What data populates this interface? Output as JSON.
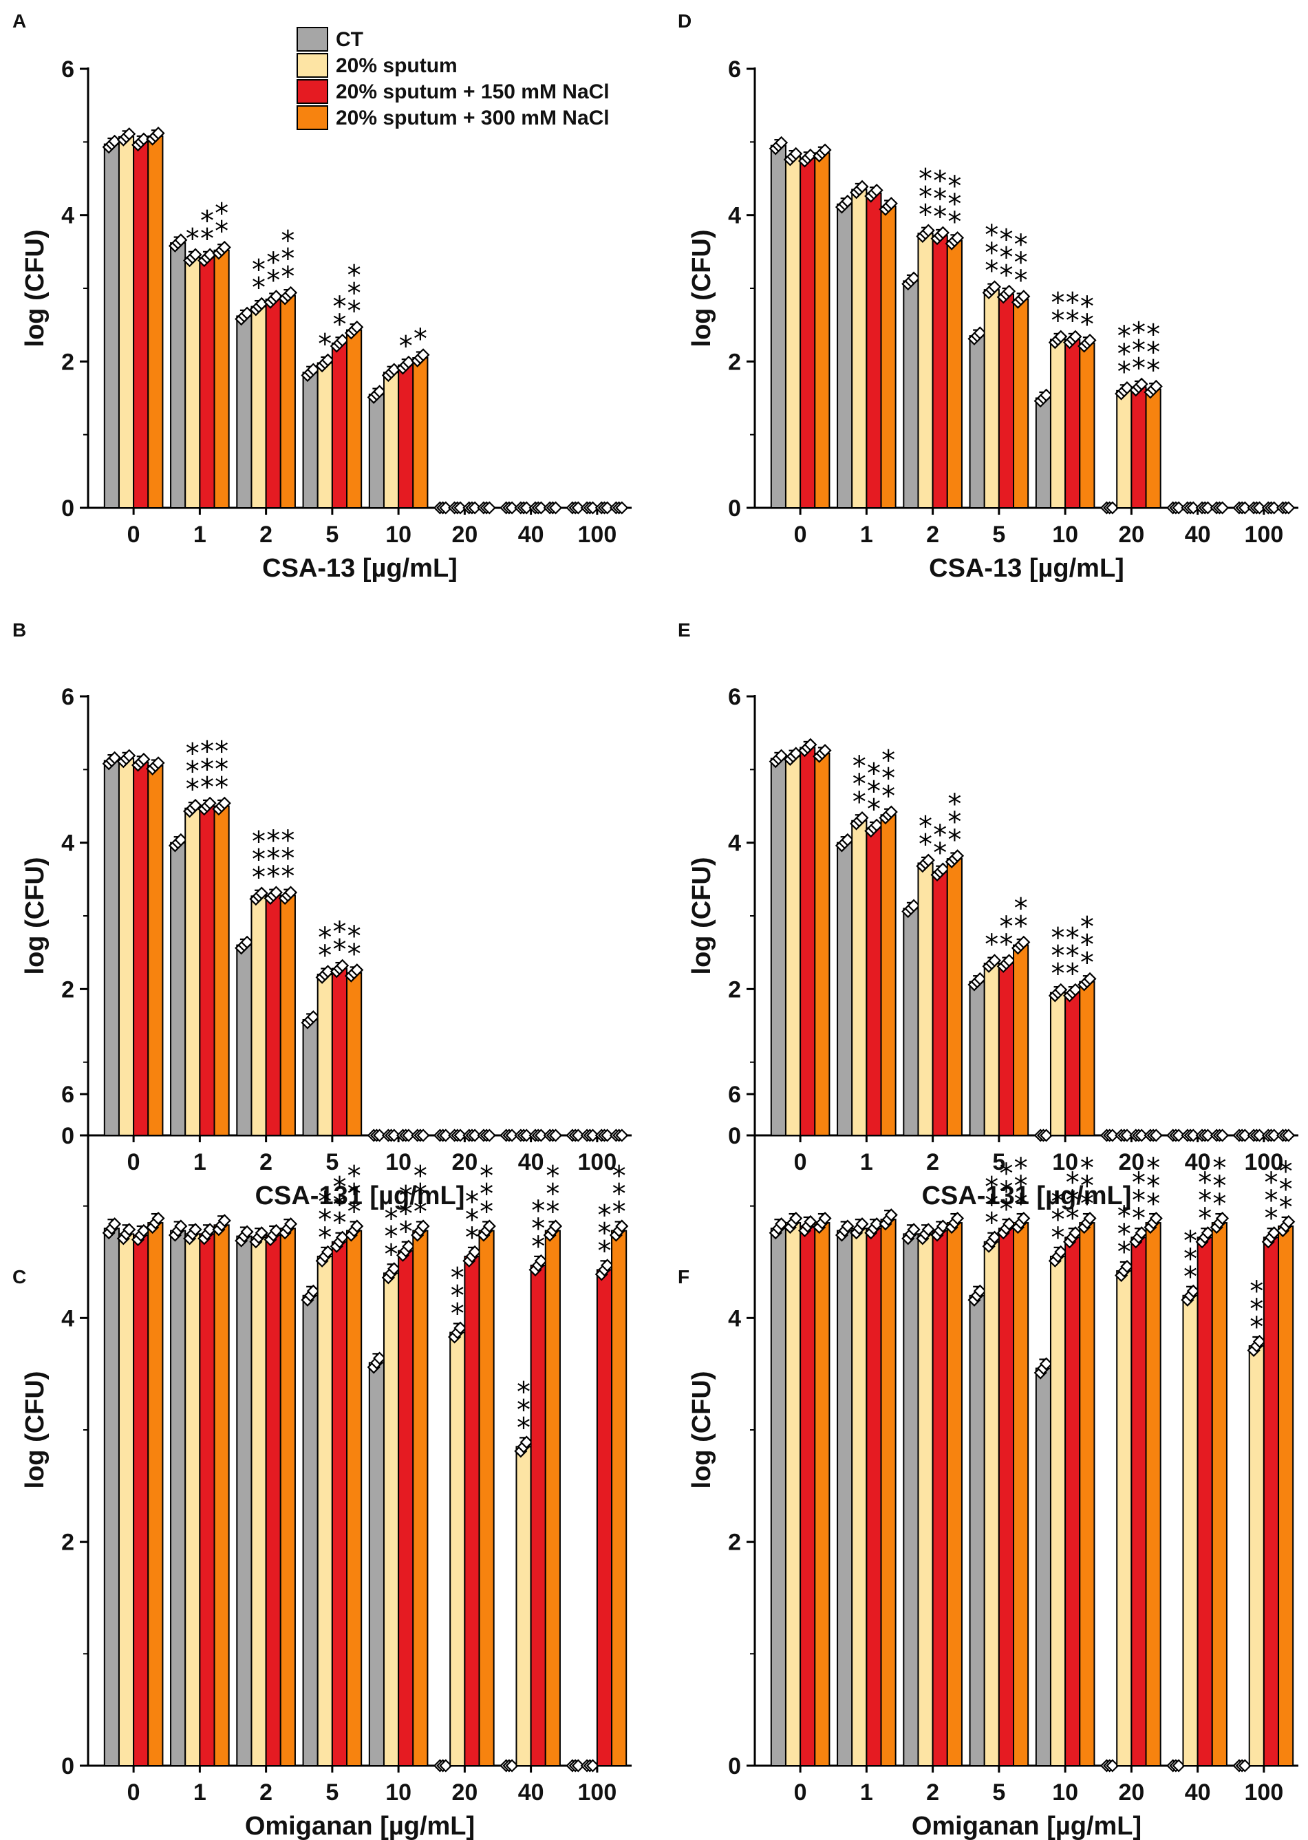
{
  "colors": {
    "CT": "#a6a6a6",
    "sputum": "#fde4a4",
    "nacl150": "#e51b22",
    "nacl300": "#f7830f"
  },
  "legend": [
    {
      "label": "CT",
      "color": "#a6a6a6"
    },
    {
      "label": "20% sputum",
      "color": "#fde4a4"
    },
    {
      "label": "20% sputum + 150 mM NaCl",
      "color": "#e51b22"
    },
    {
      "label": "20% sputum + 300 mM NaCl",
      "color": "#f7830f"
    }
  ],
  "chart_data": [
    {
      "panel": "A",
      "type": "bar",
      "title": "",
      "xlabel": "CSA-13 [µg/mL]",
      "ylabel": "log (CFU)",
      "ylim": [
        0,
        6
      ],
      "yticks": [
        "0",
        "2",
        "4",
        "6"
      ],
      "categories": [
        "0",
        "1",
        "2",
        "5",
        "10",
        "20",
        "40",
        "100"
      ],
      "series": [
        {
          "name": "CT",
          "values": [
            4.97,
            3.62,
            2.62,
            1.85,
            1.55,
            0.0,
            0.0,
            0.0
          ]
        },
        {
          "name": "20% sputum",
          "values": [
            5.07,
            3.42,
            2.75,
            1.98,
            1.85,
            0.0,
            0.0,
            0.0
          ]
        },
        {
          "name": "20% sputum + 150 mM NaCl",
          "values": [
            5.0,
            3.42,
            2.85,
            2.25,
            1.95,
            0.0,
            0.0,
            0.0
          ]
        },
        {
          "name": "20% sputum + 300 mM NaCl",
          "values": [
            5.08,
            3.52,
            2.9,
            2.43,
            2.05,
            0.0,
            0.0,
            0.0
          ]
        }
      ],
      "annotations": [
        {
          "category": "1",
          "series": 1,
          "text": "*"
        },
        {
          "category": "1",
          "series": 2,
          "text": "**"
        },
        {
          "category": "1",
          "series": 3,
          "text": "**"
        },
        {
          "category": "2",
          "series": 1,
          "text": "**"
        },
        {
          "category": "2",
          "series": 2,
          "text": "**"
        },
        {
          "category": "2",
          "series": 3,
          "text": "***"
        },
        {
          "category": "5",
          "series": 1,
          "text": "*"
        },
        {
          "category": "5",
          "series": 2,
          "text": "**"
        },
        {
          "category": "5",
          "series": 3,
          "text": "***"
        },
        {
          "category": "10",
          "series": 2,
          "text": "*"
        },
        {
          "category": "10",
          "series": 3,
          "text": "*"
        }
      ]
    },
    {
      "panel": "B",
      "type": "bar",
      "title": "",
      "xlabel": "CSA-131 [µg/mL]",
      "ylabel": "log (CFU)",
      "ylim": [
        0,
        6
      ],
      "yticks": [
        "0",
        "2",
        "4",
        "6"
      ],
      "categories": [
        "0",
        "1",
        "2",
        "5",
        "10",
        "20",
        "40",
        "100"
      ],
      "series": [
        {
          "name": "CT",
          "values": [
            5.12,
            4.0,
            2.6,
            1.58,
            0.0,
            0.0,
            0.0,
            0.0
          ]
        },
        {
          "name": "20% sputum",
          "values": [
            5.15,
            4.47,
            3.27,
            2.2,
            0.0,
            0.0,
            0.0,
            0.0
          ]
        },
        {
          "name": "20% sputum + 150 mM NaCl",
          "values": [
            5.1,
            4.5,
            3.28,
            2.28,
            0.0,
            0.0,
            0.0,
            0.0
          ]
        },
        {
          "name": "20% sputum + 300 mM NaCl",
          "values": [
            5.05,
            4.5,
            3.28,
            2.22,
            0.0,
            0.0,
            0.0,
            0.0
          ]
        }
      ],
      "annotations": [
        {
          "category": "1",
          "series": 1,
          "text": "***"
        },
        {
          "category": "1",
          "series": 2,
          "text": "***"
        },
        {
          "category": "1",
          "series": 3,
          "text": "***"
        },
        {
          "category": "2",
          "series": 1,
          "text": "***"
        },
        {
          "category": "2",
          "series": 2,
          "text": "***"
        },
        {
          "category": "2",
          "series": 3,
          "text": "***"
        },
        {
          "category": "5",
          "series": 1,
          "text": "**"
        },
        {
          "category": "5",
          "series": 2,
          "text": "**"
        },
        {
          "category": "5",
          "series": 3,
          "text": "**"
        }
      ]
    },
    {
      "panel": "C",
      "type": "bar",
      "title": "",
      "xlabel": "Omiganan [µg/mL]",
      "ylabel": "log (CFU)",
      "ylim": [
        0,
        6
      ],
      "yticks": [
        "0",
        "2",
        "4",
        "6"
      ],
      "categories": [
        "0",
        "1",
        "2",
        "5",
        "10",
        "20",
        "40",
        "100"
      ],
      "series": [
        {
          "name": "CT",
          "values": [
            4.8,
            4.78,
            4.73,
            4.2,
            3.6,
            0.0,
            0.0,
            0.0
          ]
        },
        {
          "name": "20% sputum",
          "values": [
            4.75,
            4.75,
            4.72,
            4.55,
            4.4,
            3.87,
            2.85,
            0.0
          ]
        },
        {
          "name": "20% sputum + 150 mM NaCl",
          "values": [
            4.74,
            4.75,
            4.74,
            4.68,
            4.6,
            4.55,
            4.47,
            4.43
          ]
        },
        {
          "name": "20% sputum + 300 mM NaCl",
          "values": [
            4.85,
            4.83,
            4.8,
            4.78,
            4.78,
            4.78,
            4.78,
            4.78
          ]
        }
      ],
      "annotations": [
        {
          "category": "5",
          "series": 1,
          "text": "***"
        },
        {
          "category": "5",
          "series": 2,
          "text": "***"
        },
        {
          "category": "5",
          "series": 3,
          "text": "***"
        },
        {
          "category": "10",
          "series": 1,
          "text": "***"
        },
        {
          "category": "10",
          "series": 2,
          "text": "***"
        },
        {
          "category": "10",
          "series": 3,
          "text": "***"
        },
        {
          "category": "20",
          "series": 1,
          "text": "***"
        },
        {
          "category": "20",
          "series": 2,
          "text": "***"
        },
        {
          "category": "20",
          "series": 3,
          "text": "***"
        },
        {
          "category": "40",
          "series": 1,
          "text": "***"
        },
        {
          "category": "40",
          "series": 2,
          "text": "***"
        },
        {
          "category": "40",
          "series": 3,
          "text": "***"
        },
        {
          "category": "100",
          "series": 2,
          "text": "***"
        },
        {
          "category": "100",
          "series": 3,
          "text": "***"
        }
      ]
    },
    {
      "panel": "D",
      "type": "bar",
      "title": "",
      "xlabel": "CSA-13 [µg/mL]",
      "ylabel": "log (CFU)",
      "ylim": [
        0,
        6
      ],
      "yticks": [
        "0",
        "2",
        "4",
        "6"
      ],
      "categories": [
        "0",
        "1",
        "2",
        "5",
        "10",
        "20",
        "40",
        "100"
      ],
      "series": [
        {
          "name": "CT",
          "values": [
            4.95,
            4.15,
            3.1,
            2.35,
            1.5,
            0.0,
            0.0,
            0.0
          ]
        },
        {
          "name": "20% sputum",
          "values": [
            4.8,
            4.35,
            3.75,
            2.98,
            2.3,
            1.6,
            0.0,
            0.0
          ]
        },
        {
          "name": "20% sputum + 150 mM NaCl",
          "values": [
            4.78,
            4.3,
            3.72,
            2.92,
            2.3,
            1.65,
            0.0,
            0.0
          ]
        },
        {
          "name": "20% sputum + 300 mM NaCl",
          "values": [
            4.85,
            4.12,
            3.65,
            2.85,
            2.25,
            1.62,
            0.0,
            0.0
          ]
        }
      ],
      "annotations": [
        {
          "category": "2",
          "series": 1,
          "text": "***"
        },
        {
          "category": "2",
          "series": 2,
          "text": "***"
        },
        {
          "category": "2",
          "series": 3,
          "text": "***"
        },
        {
          "category": "5",
          "series": 1,
          "text": "***"
        },
        {
          "category": "5",
          "series": 2,
          "text": "***"
        },
        {
          "category": "5",
          "series": 3,
          "text": "***"
        },
        {
          "category": "10",
          "series": 1,
          "text": "**"
        },
        {
          "category": "10",
          "series": 2,
          "text": "**"
        },
        {
          "category": "10",
          "series": 3,
          "text": "**"
        },
        {
          "category": "20",
          "series": 1,
          "text": "***"
        },
        {
          "category": "20",
          "series": 2,
          "text": "***"
        },
        {
          "category": "20",
          "series": 3,
          "text": "***"
        }
      ]
    },
    {
      "panel": "E",
      "type": "bar",
      "title": "",
      "xlabel": "CSA-131 [µg/mL]",
      "ylabel": "log (CFU)",
      "ylim": [
        0,
        6
      ],
      "yticks": [
        "0",
        "2",
        "4",
        "6"
      ],
      "categories": [
        "0",
        "1",
        "2",
        "5",
        "10",
        "20",
        "40",
        "100"
      ],
      "series": [
        {
          "name": "CT",
          "values": [
            5.15,
            4.0,
            3.1,
            2.1,
            0.0,
            0.0,
            0.0,
            0.0
          ]
        },
        {
          "name": "20% sputum",
          "values": [
            5.18,
            4.3,
            3.72,
            2.35,
            1.95,
            0.0,
            0.0,
            0.0
          ]
        },
        {
          "name": "20% sputum + 150 mM NaCl",
          "values": [
            5.3,
            4.2,
            3.6,
            2.35,
            1.95,
            0.0,
            0.0,
            0.0
          ]
        },
        {
          "name": "20% sputum + 300 mM NaCl",
          "values": [
            5.22,
            4.38,
            3.78,
            2.6,
            2.1,
            0.0,
            0.0,
            0.0
          ]
        }
      ],
      "annotations": [
        {
          "category": "1",
          "series": 1,
          "text": "***"
        },
        {
          "category": "1",
          "series": 2,
          "text": "***"
        },
        {
          "category": "1",
          "series": 3,
          "text": "***"
        },
        {
          "category": "2",
          "series": 1,
          "text": "**"
        },
        {
          "category": "2",
          "series": 2,
          "text": "**"
        },
        {
          "category": "2",
          "series": 3,
          "text": "***"
        },
        {
          "category": "5",
          "series": 1,
          "text": "*"
        },
        {
          "category": "5",
          "series": 2,
          "text": "**"
        },
        {
          "category": "5",
          "series": 3,
          "text": "**"
        },
        {
          "category": "10",
          "series": 1,
          "text": "***"
        },
        {
          "category": "10",
          "series": 2,
          "text": "***"
        },
        {
          "category": "10",
          "series": 3,
          "text": "***"
        }
      ]
    },
    {
      "panel": "F",
      "type": "bar",
      "title": "",
      "xlabel": "Omiganan [µg/mL]",
      "ylabel": "log (CFU)",
      "ylim": [
        0,
        6
      ],
      "yticks": [
        "0",
        "2",
        "4",
        "6"
      ],
      "categories": [
        "0",
        "1",
        "2",
        "5",
        "10",
        "20",
        "40",
        "100"
      ],
      "series": [
        {
          "name": "CT",
          "values": [
            4.8,
            4.78,
            4.75,
            4.2,
            3.55,
            0.0,
            0.0,
            0.0
          ]
        },
        {
          "name": "20% sputum",
          "values": [
            4.85,
            4.8,
            4.75,
            4.68,
            4.55,
            4.42,
            4.2,
            3.75
          ]
        },
        {
          "name": "20% sputum + 150 mM NaCl",
          "values": [
            4.82,
            4.8,
            4.78,
            4.8,
            4.72,
            4.72,
            4.72,
            4.72
          ]
        },
        {
          "name": "20% sputum + 300 mM NaCl",
          "values": [
            4.85,
            4.88,
            4.85,
            4.85,
            4.85,
            4.85,
            4.85,
            4.82
          ]
        }
      ],
      "annotations": [
        {
          "category": "5",
          "series": 1,
          "text": "***"
        },
        {
          "category": "5",
          "series": 2,
          "text": "***"
        },
        {
          "category": "5",
          "series": 3,
          "text": "***"
        },
        {
          "category": "10",
          "series": 1,
          "text": "***"
        },
        {
          "category": "10",
          "series": 2,
          "text": "***"
        },
        {
          "category": "10",
          "series": 3,
          "text": "***"
        },
        {
          "category": "20",
          "series": 1,
          "text": "***"
        },
        {
          "category": "20",
          "series": 2,
          "text": "***"
        },
        {
          "category": "20",
          "series": 3,
          "text": "***"
        },
        {
          "category": "40",
          "series": 1,
          "text": "***"
        },
        {
          "category": "40",
          "series": 2,
          "text": "***"
        },
        {
          "category": "40",
          "series": 3,
          "text": "***"
        },
        {
          "category": "100",
          "series": 1,
          "text": "***"
        },
        {
          "category": "100",
          "series": 2,
          "text": "***"
        },
        {
          "category": "100",
          "series": 3,
          "text": "***"
        }
      ]
    }
  ]
}
